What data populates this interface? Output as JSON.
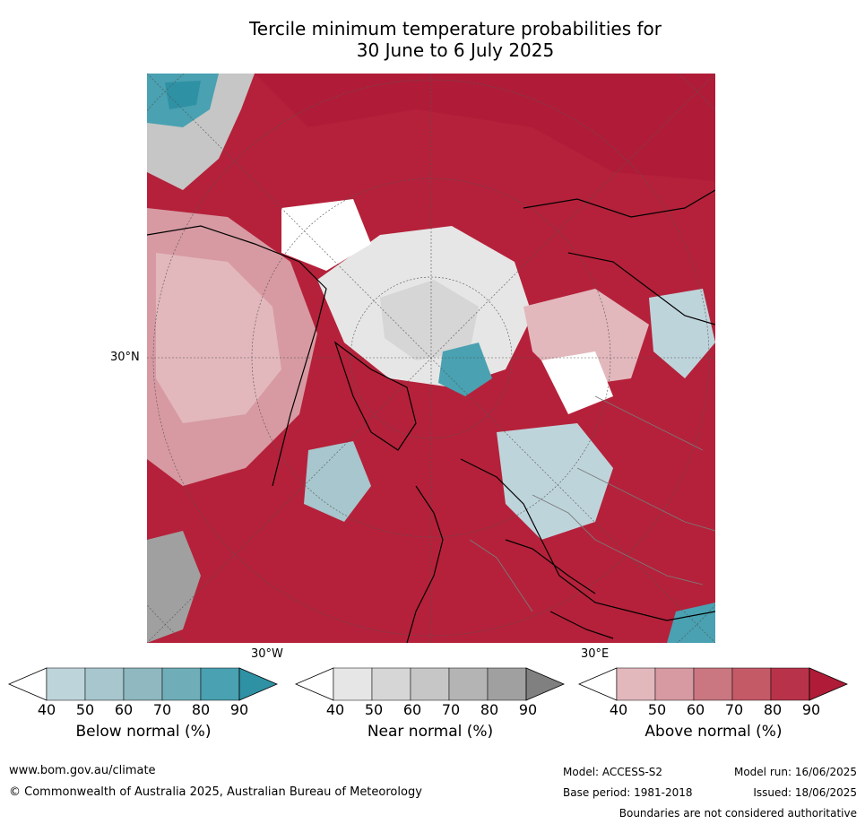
{
  "title_line1": "Tercile minimum temperature probabilities for",
  "title_line2": "30 June to 6 July 2025",
  "map": {
    "lat_label": "30°N",
    "lon_label_west": "30°W",
    "lon_label_east": "30°E"
  },
  "legend": [
    {
      "label": "Below normal (%)",
      "ticks": [
        "40",
        "50",
        "60",
        "70",
        "80",
        "90"
      ],
      "colors": [
        "#ffffff",
        "#bed4db",
        "#a7c6cd",
        "#8fb8c0",
        "#6faeb9",
        "#49a1b1",
        "#2f91a4"
      ]
    },
    {
      "label": "Near normal (%)",
      "ticks": [
        "40",
        "50",
        "60",
        "70",
        "80",
        "90"
      ],
      "colors": [
        "#ffffff",
        "#e6e6e6",
        "#d6d6d6",
        "#c6c6c6",
        "#b4b4b4",
        "#a0a0a0",
        "#808080"
      ]
    },
    {
      "label": "Above normal (%)",
      "ticks": [
        "40",
        "50",
        "60",
        "70",
        "80",
        "90"
      ],
      "colors": [
        "#ffffff",
        "#e2b8bd",
        "#d79aa2",
        "#ca7781",
        "#c55a67",
        "#b8334a",
        "#b01c38"
      ]
    }
  ],
  "footer": {
    "website": "www.bom.gov.au/climate",
    "copyright": "© Commonwealth of Australia 2025, Australian Bureau of Meteorology",
    "model": "Model: ACCESS-S2",
    "base_period": "Base period: 1981-2018",
    "model_run": "Model run: 16/06/2025",
    "issued": "Issued: 18/06/2025",
    "disclaimer": "Boundaries are not considered authoritative"
  }
}
